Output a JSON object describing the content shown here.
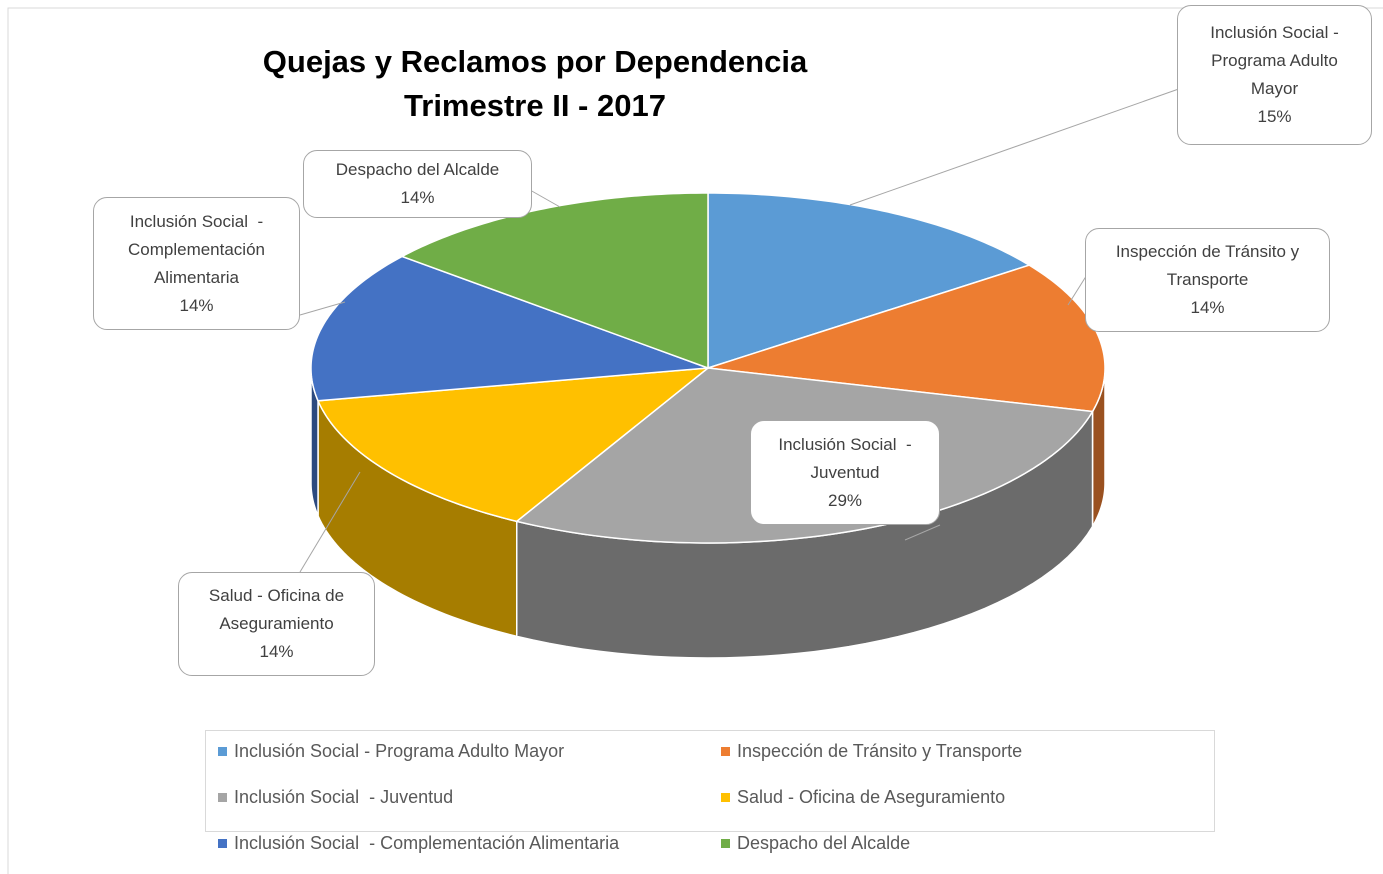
{
  "chart_data": {
    "type": "pie3d",
    "title": "Quejas y Reclamos por Dependencia\nTrimestre II - 2017",
    "categories": [
      "Inclusión Social - Programa Adulto Mayor",
      "Inspección de Tránsito y Transporte",
      "Inclusión Social  - Juventud",
      "Salud - Oficina de Aseguramiento",
      "Inclusión Social  - Complementación Alimentaria",
      "Despacho del Alcalde"
    ],
    "values": [
      15,
      14,
      29,
      14,
      14,
      14
    ],
    "value_labels": [
      "15%",
      "14%",
      "29%",
      "14%",
      "14%",
      "14%"
    ],
    "colors": [
      "#5b9bd5",
      "#ed7d31",
      "#a5a5a5",
      "#ffc000",
      "#4472c4",
      "#70ad47"
    ],
    "legend": "bottom"
  }
}
